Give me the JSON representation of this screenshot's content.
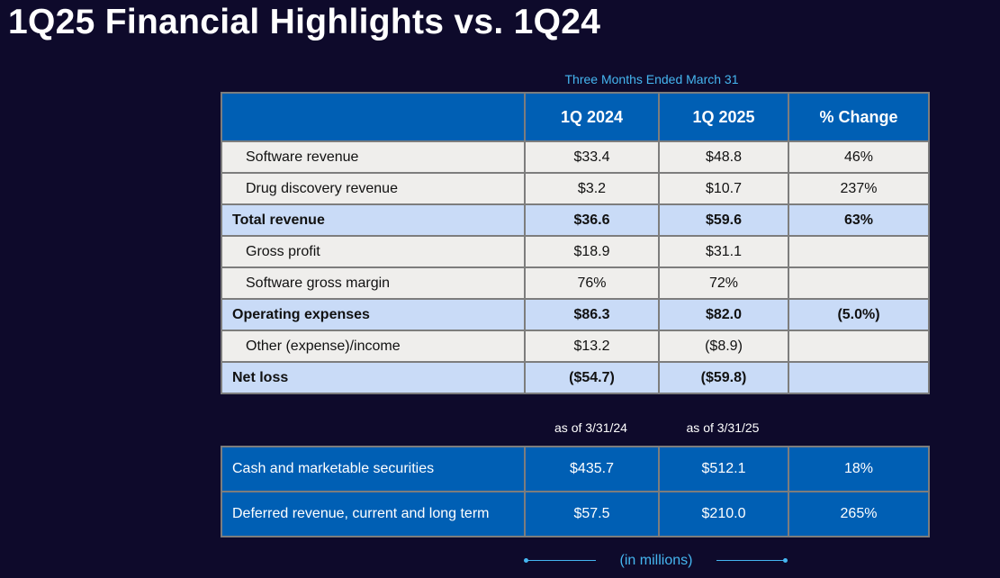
{
  "title": "1Q25 Financial Highlights vs. 1Q24",
  "period_label": "Three Months Ended March 31",
  "columns": [
    "",
    "1Q 2024",
    "1Q 2025",
    "% Change"
  ],
  "rows": [
    {
      "label": "Software revenue",
      "q1_2024": "$33.4",
      "q1_2025": "$48.8",
      "change": "46%",
      "type": "normal"
    },
    {
      "label": "Drug discovery revenue",
      "q1_2024": "$3.2",
      "q1_2025": "$10.7",
      "change": "237%",
      "type": "normal"
    },
    {
      "label": "Total revenue",
      "q1_2024": "$36.6",
      "q1_2025": "$59.6",
      "change": "63%",
      "type": "total"
    },
    {
      "label": "Gross profit",
      "q1_2024": "$18.9",
      "q1_2025": "$31.1",
      "change": "",
      "type": "normal"
    },
    {
      "label": "Software gross margin",
      "q1_2024": "76%",
      "q1_2025": "72%",
      "change": "",
      "type": "normal"
    },
    {
      "label": "Operating expenses",
      "q1_2024": "$86.3",
      "q1_2025": "$82.0",
      "change": "(5.0%)",
      "type": "total"
    },
    {
      "label": "Other (expense)/income",
      "q1_2024": "$13.2",
      "q1_2025": "($8.9)",
      "change": "",
      "type": "normal"
    },
    {
      "label": "Net loss",
      "q1_2024": "($54.7)",
      "q1_2025": "($59.8)",
      "change": "",
      "type": "total"
    }
  ],
  "as_of": [
    "as of 3/31/24",
    "as of 3/31/25"
  ],
  "balance_rows": [
    {
      "label": "Cash and marketable securities",
      "q1_2024": "$435.7",
      "q1_2025": "$512.1",
      "change": "18%"
    },
    {
      "label": "Deferred revenue, current and long term",
      "q1_2024": "$57.5",
      "q1_2025": "$210.0",
      "change": "265%"
    }
  ],
  "units_note": "(in millions)",
  "colors": {
    "background": "#0e0a2b",
    "header_blue": "#005fb4",
    "total_row": "#c9dbf7",
    "normal_row": "#efeeec",
    "accent": "#45b6f0"
  }
}
